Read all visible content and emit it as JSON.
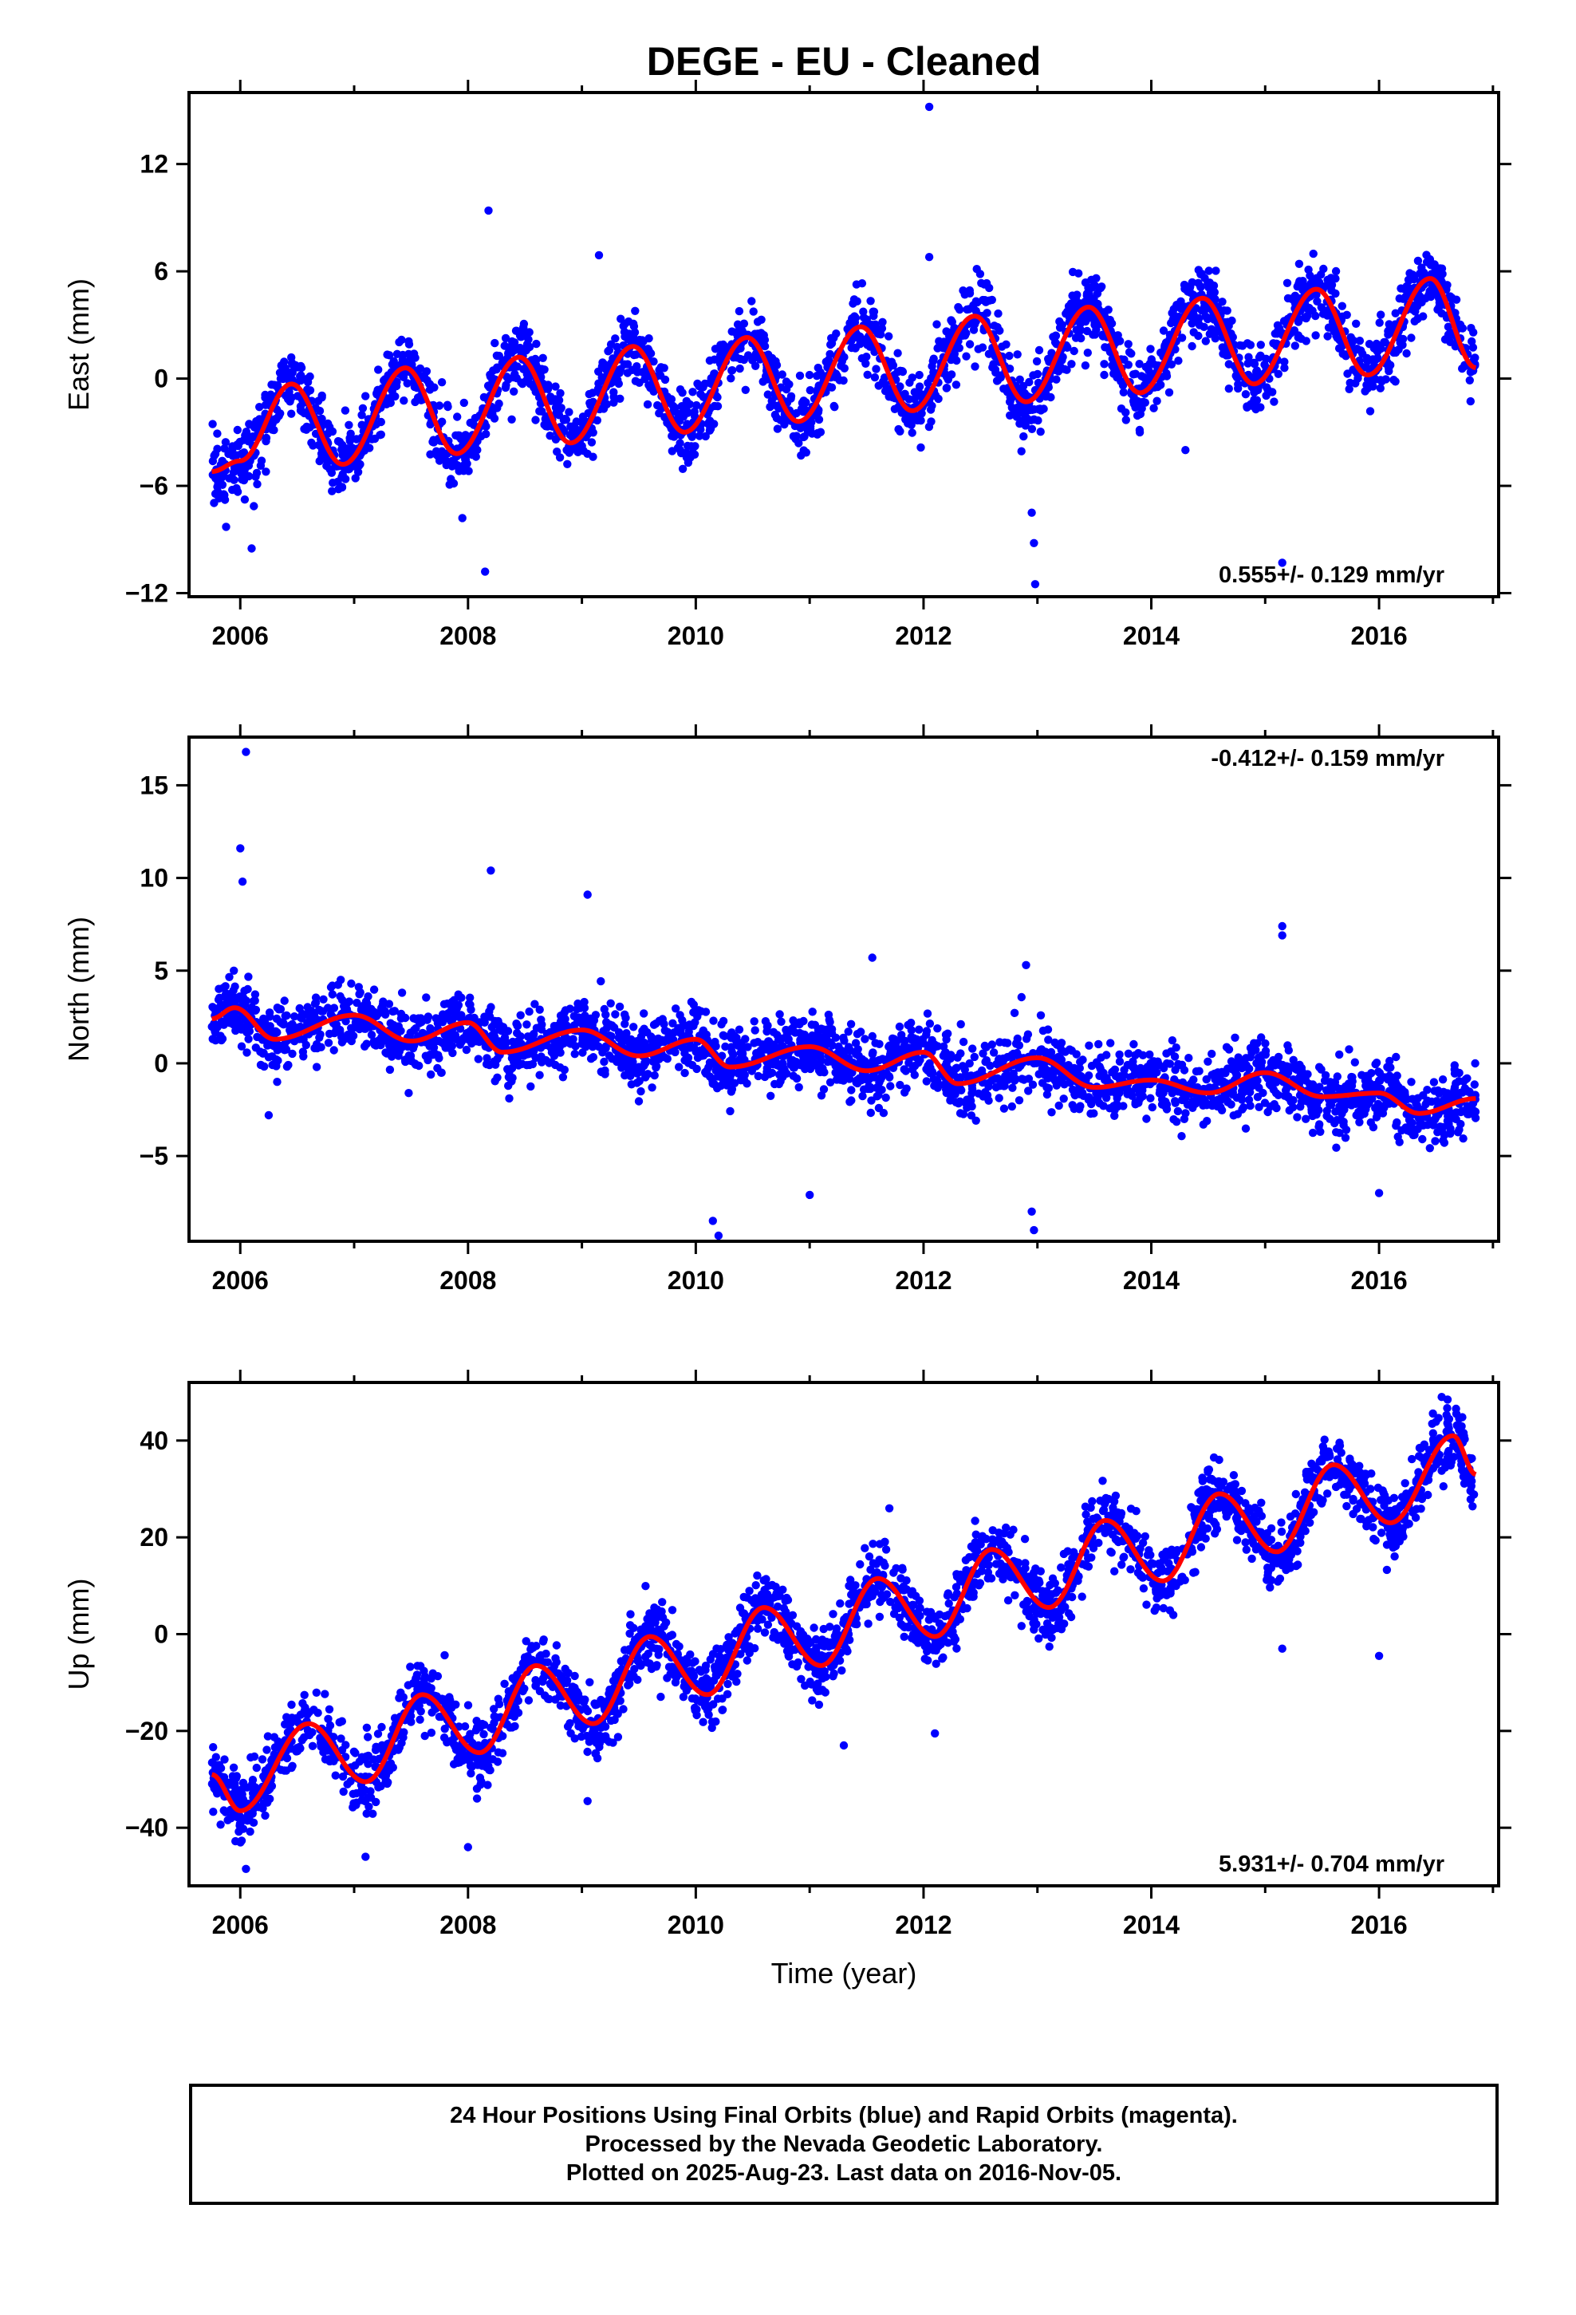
{
  "title": "DEGE  - EU - Cleaned",
  "colors": {
    "data_points": "#0000ff",
    "model_fit": "#ff0000",
    "frame": "#000000"
  },
  "chart_data": [
    {
      "type": "scatter",
      "id": "east",
      "title": "",
      "xlabel": "",
      "ylabel": "East (mm)",
      "xlim": [
        2005.55,
        2017.05
      ],
      "ylim": [
        -12.2,
        16
      ],
      "x_ticks": [
        2006,
        2008,
        2010,
        2012,
        2014,
        2016
      ],
      "x_tick_labels": [
        "2006",
        "2008",
        "2010",
        "2012",
        "2014",
        "2016"
      ],
      "y_ticks": [
        -12,
        -6,
        0,
        6,
        12
      ],
      "y_tick_labels": [
        "−12",
        "−6",
        "0",
        "6",
        "12"
      ],
      "rate_label": "0.555+/- 0.129 mm/yr",
      "rate_position": "bottom-right",
      "data_span": [
        2005.75,
        2016.85
      ],
      "model": {
        "offset": -3.0,
        "trend": 0.555,
        "annual_amplitude": 2.4,
        "annual_peak": 0.45
      },
      "model_points": [
        [
          2005.75,
          -5.2
        ],
        [
          2006.0,
          -4.6
        ],
        [
          2006.45,
          -0.3
        ],
        [
          2006.9,
          -4.8
        ],
        [
          2007.45,
          0.6
        ],
        [
          2007.9,
          -4.2
        ],
        [
          2008.45,
          1.2
        ],
        [
          2008.9,
          -3.6
        ],
        [
          2009.45,
          1.8
        ],
        [
          2009.9,
          -3.0
        ],
        [
          2010.45,
          2.3
        ],
        [
          2010.9,
          -2.4
        ],
        [
          2011.45,
          2.9
        ],
        [
          2011.9,
          -1.8
        ],
        [
          2012.45,
          3.5
        ],
        [
          2012.9,
          -1.3
        ],
        [
          2013.45,
          4.0
        ],
        [
          2013.9,
          -0.8
        ],
        [
          2014.45,
          4.5
        ],
        [
          2014.9,
          -0.3
        ],
        [
          2015.45,
          5.0
        ],
        [
          2015.9,
          0.2
        ],
        [
          2016.45,
          5.6
        ],
        [
          2016.85,
          0.6
        ]
      ],
      "scatter_sd": 1.3,
      "outliers": [
        [
          2006.1,
          -9.5
        ],
        [
          2007.95,
          -7.8
        ],
        [
          2008.15,
          -10.8
        ],
        [
          2008.18,
          9.4
        ],
        [
          2009.15,
          6.9
        ],
        [
          2012.05,
          15.2
        ],
        [
          2012.05,
          6.8
        ],
        [
          2012.95,
          -7.5
        ],
        [
          2012.97,
          -9.2
        ],
        [
          2012.98,
          -11.5
        ],
        [
          2015.15,
          -10.3
        ],
        [
          2014.3,
          -4.0
        ]
      ]
    },
    {
      "type": "scatter",
      "id": "north",
      "title": "",
      "xlabel": "",
      "ylabel": "North (mm)",
      "xlim": [
        2005.55,
        2017.05
      ],
      "ylim": [
        -9.6,
        17.6
      ],
      "x_ticks": [
        2006,
        2008,
        2010,
        2012,
        2014,
        2016
      ],
      "x_tick_labels": [
        "2006",
        "2008",
        "2010",
        "2012",
        "2014",
        "2016"
      ],
      "y_ticks": [
        -5,
        0,
        5,
        10,
        15
      ],
      "y_tick_labels": [
        "−5",
        "0",
        "5",
        "10",
        "15"
      ],
      "rate_label": "-0.412+/- 0.159 mm/yr",
      "rate_position": "top-right",
      "data_span": [
        2005.75,
        2016.85
      ],
      "model": {
        "offset": 2.3,
        "trend": -0.412,
        "annual_amplitude": 0.5,
        "annual_peak": 0.0
      },
      "model_points": [
        [
          2005.75,
          2.4
        ],
        [
          2005.95,
          3.0
        ],
        [
          2006.3,
          1.3
        ],
        [
          2007.0,
          2.6
        ],
        [
          2007.5,
          1.2
        ],
        [
          2008.0,
          2.2
        ],
        [
          2008.3,
          0.6
        ],
        [
          2009.0,
          1.8
        ],
        [
          2009.5,
          0.4
        ],
        [
          2010.0,
          1.3
        ],
        [
          2010.3,
          -0.2
        ],
        [
          2011.0,
          0.9
        ],
        [
          2011.5,
          -0.4
        ],
        [
          2012.0,
          0.6
        ],
        [
          2012.3,
          -1.1
        ],
        [
          2013.0,
          0.3
        ],
        [
          2013.5,
          -1.3
        ],
        [
          2014.0,
          -0.9
        ],
        [
          2014.5,
          -1.6
        ],
        [
          2015.0,
          -0.5
        ],
        [
          2015.5,
          -1.8
        ],
        [
          2016.0,
          -1.6
        ],
        [
          2016.35,
          -2.7
        ],
        [
          2016.85,
          -1.9
        ]
      ],
      "scatter_sd": 1.2,
      "outliers": [
        [
          2006.05,
          16.8
        ],
        [
          2006.0,
          11.6
        ],
        [
          2006.02,
          9.8
        ],
        [
          2008.2,
          10.4
        ],
        [
          2009.05,
          9.1
        ],
        [
          2010.15,
          -8.5
        ],
        [
          2010.2,
          -9.3
        ],
        [
          2011.0,
          -7.1
        ],
        [
          2011.55,
          5.7
        ],
        [
          2012.9,
          5.3
        ],
        [
          2012.95,
          -8.0
        ],
        [
          2012.97,
          -9.0
        ],
        [
          2015.15,
          7.4
        ],
        [
          2015.15,
          6.9
        ],
        [
          2016.0,
          -7.0
        ],
        [
          2006.25,
          -2.8
        ]
      ]
    },
    {
      "type": "scatter",
      "id": "up",
      "title": "",
      "xlabel": "Time (year)",
      "ylabel": "Up (mm)",
      "xlim": [
        2005.55,
        2017.05
      ],
      "ylim": [
        -52,
        52
      ],
      "x_ticks": [
        2006,
        2008,
        2010,
        2012,
        2014,
        2016
      ],
      "x_tick_labels": [
        "2006",
        "2008",
        "2010",
        "2012",
        "2014",
        "2016"
      ],
      "y_ticks": [
        -40,
        -20,
        0,
        20,
        40
      ],
      "y_tick_labels": [
        "−40",
        "−20",
        "0",
        "20",
        "40"
      ],
      "rate_label": "5.931+/- 0.704 mm/yr",
      "rate_position": "bottom-right",
      "data_span": [
        2005.75,
        2016.85
      ],
      "model": {
        "offset": -30.0,
        "trend": 5.931,
        "annual_amplitude": 6.0,
        "annual_peak": 0.6
      },
      "model_points": [
        [
          2005.75,
          -29.0
        ],
        [
          2006.0,
          -36.5
        ],
        [
          2006.6,
          -18.5
        ],
        [
          2007.1,
          -30.5
        ],
        [
          2007.6,
          -12.5
        ],
        [
          2008.1,
          -24.5
        ],
        [
          2008.6,
          -6.5
        ],
        [
          2009.1,
          -18.5
        ],
        [
          2009.6,
          -0.5
        ],
        [
          2010.1,
          -12.5
        ],
        [
          2010.6,
          5.5
        ],
        [
          2011.1,
          -6.5
        ],
        [
          2011.6,
          11.5
        ],
        [
          2012.1,
          -0.5
        ],
        [
          2012.6,
          17.5
        ],
        [
          2013.1,
          5.5
        ],
        [
          2013.6,
          23.5
        ],
        [
          2014.1,
          11.0
        ],
        [
          2014.6,
          29.0
        ],
        [
          2015.1,
          17.0
        ],
        [
          2015.6,
          35.0
        ],
        [
          2016.1,
          23.0
        ],
        [
          2016.65,
          41.0
        ],
        [
          2016.85,
          33.0
        ]
      ],
      "scatter_sd": 4.5,
      "outliers": [
        [
          2006.05,
          -48.5
        ],
        [
          2007.1,
          -46.0
        ],
        [
          2008.0,
          -44.0
        ],
        [
          2009.05,
          -34.5
        ],
        [
          2011.3,
          -23.0
        ],
        [
          2012.1,
          -20.5
        ],
        [
          2011.7,
          26.0
        ],
        [
          2015.15,
          -3.0
        ],
        [
          2016.0,
          -4.5
        ],
        [
          2016.55,
          49.0
        ]
      ]
    }
  ],
  "footer": {
    "line1": "24 Hour Positions Using Final Orbits (blue) and Rapid Orbits (magenta).",
    "line2": "Processed by the Nevada Geodetic Laboratory.",
    "line3": "Plotted on 2025-Aug-23. Last data on 2016-Nov-05."
  }
}
